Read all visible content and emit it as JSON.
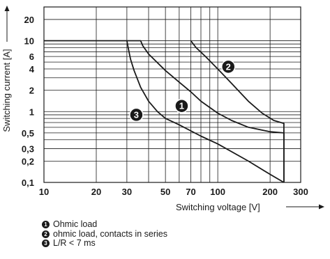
{
  "chart_data": {
    "type": "line",
    "xscale": "log",
    "yscale": "log",
    "xlabel": "Switching voltage [V]",
    "ylabel": "Switching current [A]",
    "xlim": [
      10,
      300
    ],
    "ylim": [
      0.1,
      30
    ],
    "xticks": [
      10,
      20,
      30,
      50,
      70,
      100,
      200,
      300
    ],
    "xtick_labels": [
      "10",
      "20",
      "30",
      "50",
      "70",
      "100",
      "200",
      "300"
    ],
    "yticks": [
      20,
      10,
      6,
      4,
      2,
      1,
      0.5,
      0.3,
      0.2,
      0.1
    ],
    "ytick_labels": [
      "20",
      "10",
      "6",
      "4",
      "2",
      "1",
      "0,5",
      "0,3",
      "0,2",
      "0,1"
    ],
    "grid": true,
    "series": [
      {
        "marker": "1",
        "color": "#1a1a1a",
        "points": [
          [
            10,
            10
          ],
          [
            36,
            10
          ],
          [
            37,
            8.5
          ],
          [
            40,
            6.5
          ],
          [
            50,
            3.8
          ],
          [
            60,
            2.6
          ],
          [
            70,
            1.9
          ],
          [
            80,
            1.4
          ],
          [
            100,
            0.95
          ],
          [
            120,
            0.75
          ],
          [
            150,
            0.6
          ],
          [
            200,
            0.52
          ],
          [
            240,
            0.5
          ],
          [
            240,
            0.1
          ]
        ]
      },
      {
        "marker": "2",
        "color": "#1a1a1a",
        "points": [
          [
            70,
            10
          ],
          [
            75,
            8
          ],
          [
            85,
            6
          ],
          [
            100,
            4
          ],
          [
            120,
            2.5
          ],
          [
            150,
            1.4
          ],
          [
            180,
            0.95
          ],
          [
            210,
            0.75
          ],
          [
            240,
            0.68
          ],
          [
            240,
            0.1
          ]
        ]
      },
      {
        "marker": "3",
        "color": "#1a1a1a",
        "points": [
          [
            30,
            10
          ],
          [
            30.5,
            8
          ],
          [
            31.5,
            5.5
          ],
          [
            33,
            3.8
          ],
          [
            36,
            2.2
          ],
          [
            40,
            1.4
          ],
          [
            45,
            1.0
          ],
          [
            50,
            0.8
          ],
          [
            60,
            0.65
          ],
          [
            80,
            0.45
          ],
          [
            100,
            0.35
          ],
          [
            150,
            0.2
          ],
          [
            200,
            0.13
          ],
          [
            240,
            0.1
          ]
        ]
      }
    ],
    "annotations": [
      {
        "text": "1",
        "x": 62,
        "y": 1.2
      },
      {
        "text": "2",
        "x": 115,
        "y": 4.3
      },
      {
        "text": "3",
        "x": 34,
        "y": 0.9
      }
    ],
    "legend": [
      {
        "marker": "1",
        "label": "Ohmic load"
      },
      {
        "marker": "2",
        "label": "ohmic load, contacts in series"
      },
      {
        "marker": "3",
        "label": "L/R < 7 ms"
      }
    ]
  }
}
